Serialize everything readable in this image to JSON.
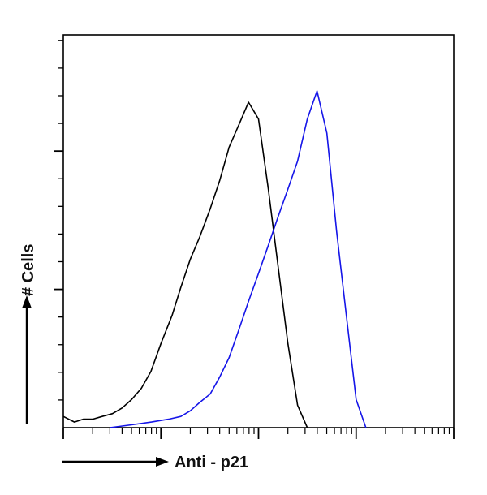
{
  "chart_data": {
    "type": "line",
    "title": "",
    "xlabel": "Anti - p21",
    "ylabel": "# Cells",
    "x_scale": "log",
    "xlim": [
      1,
      10000
    ],
    "ylim": [
      0,
      140
    ],
    "grid": false,
    "legend": "none",
    "series": [
      {
        "color": "#000000",
        "x": [
          1.0,
          1.3,
          1.6,
          2.0,
          2.5,
          3.2,
          4.0,
          5.0,
          6.3,
          7.9,
          10,
          13,
          16,
          20,
          25,
          32,
          40,
          50,
          63,
          79,
          100,
          126,
          158,
          200,
          251,
          316
        ],
        "y": [
          4,
          2,
          3,
          3,
          4,
          5,
          7,
          10,
          14,
          20,
          30,
          40,
          50,
          60,
          68,
          78,
          88,
          100,
          108,
          116,
          110,
          85,
          58,
          30,
          8,
          0
        ]
      },
      {
        "color": "#1515e8",
        "x": [
          3.0,
          5.0,
          8.0,
          12,
          16,
          20,
          25,
          32,
          40,
          50,
          63,
          79,
          100,
          126,
          158,
          200,
          251,
          316,
          398,
          501,
          631,
          794,
          1000,
          1259
        ],
        "y": [
          0,
          1,
          2,
          3,
          4,
          6,
          9,
          12,
          18,
          25,
          35,
          45,
          55,
          65,
          75,
          85,
          95,
          110,
          120,
          105,
          70,
          40,
          10,
          0
        ]
      }
    ]
  }
}
